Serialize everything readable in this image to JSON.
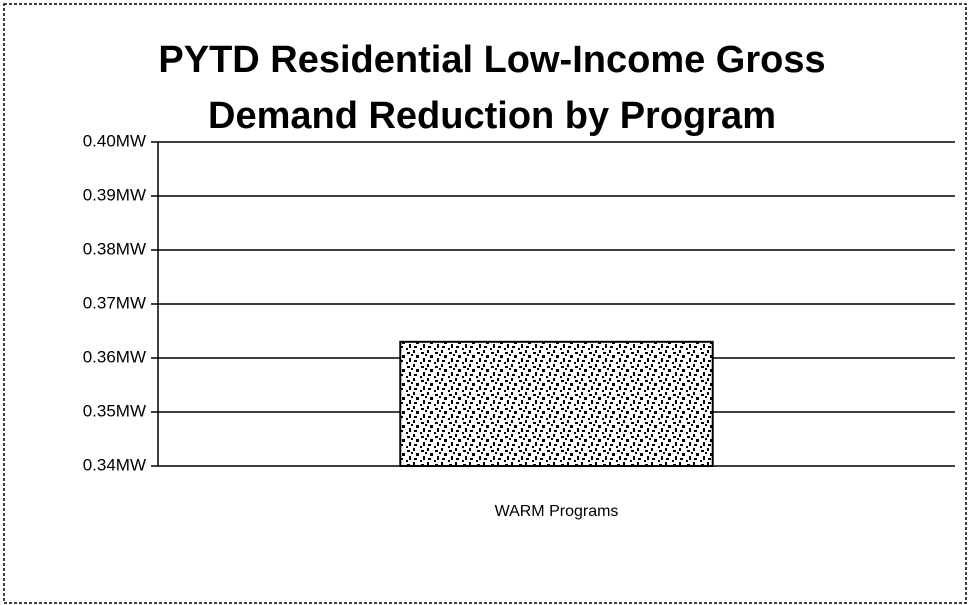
{
  "chart_data": {
    "type": "bar",
    "title": [
      "PYTD Residential Low-Income Gross",
      "Demand Reduction by Program"
    ],
    "categories": [
      "WARM Programs"
    ],
    "values": [
      0.363
    ],
    "color": "#000000",
    "ylim": [
      0.34,
      0.4
    ],
    "yticks": [
      {
        "value": 0.34,
        "label": "0.34MW"
      },
      {
        "value": 0.35,
        "label": "0.35MW"
      },
      {
        "value": 0.36,
        "label": "0.36MW"
      },
      {
        "value": 0.37,
        "label": "0.37MW"
      },
      {
        "value": 0.38,
        "label": "0.38MW"
      },
      {
        "value": 0.39,
        "label": "0.39MW"
      },
      {
        "value": 0.4,
        "label": "0.40MW"
      }
    ],
    "grid": true
  }
}
